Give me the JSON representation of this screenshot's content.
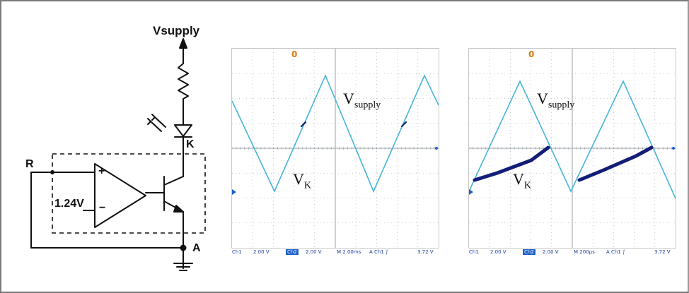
{
  "circuit": {
    "supply_label": "Vsupply",
    "cathode_label": "K",
    "input_label": "R",
    "reference_label": "1.24V",
    "anode_label": "A",
    "opamp_plus": "+",
    "opamp_minus": "−"
  },
  "scope_left": {
    "marker": "0",
    "vsupply_label": "V",
    "vsupply_sub": "supply",
    "vk_label": "V",
    "vk_sub": "K",
    "status": {
      "ch1": "Ch1",
      "ch1_scale": "2.00 V",
      "ch2": "Ch2",
      "ch2_scale": "2.00 V",
      "timebase": "M 2.00ms",
      "trigger": "A  Ch1  ∫",
      "trigger_level": "3.72 V"
    }
  },
  "scope_right": {
    "marker": "0",
    "vsupply_label": "V",
    "vsupply_sub": "supply",
    "vk_label": "V",
    "vk_sub": "K",
    "status": {
      "ch1": "Ch1",
      "ch1_scale": "2.00 V",
      "ch2": "Ch2",
      "ch2_scale": "2.00 V",
      "timebase": "M 200μs",
      "trigger": "A  Ch1  ∫",
      "trigger_level": "3.72 V"
    }
  },
  "colors": {
    "supply_trace": "#45b5d6",
    "vk_trace": "#141e78",
    "grid": "#9aa0a6",
    "status_text": "#1b3a9a"
  }
}
